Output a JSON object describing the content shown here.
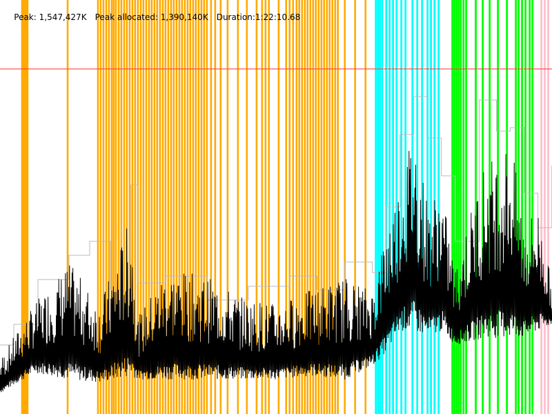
{
  "header": {
    "peak": "Peak: 1,547,427K",
    "peak_allocated": "Peak allocated: 1,390,140K",
    "duration": "Duration:1:22:10.68"
  },
  "chart_data": {
    "type": "line",
    "title": "",
    "xlabel": "",
    "ylabel": "",
    "x_unit": "seconds",
    "y_unit": "MB",
    "xlim": [
      0,
      4930.68
    ],
    "ylim": [
      0,
      1813
    ],
    "grid": false,
    "peak_line": {
      "value": 1511,
      "color": "#ff4040"
    },
    "colors": {
      "orange": "#ffaa00",
      "cyan": "#00ffff",
      "green": "#00ff00",
      "pink": "#ffc0cb",
      "heap": "#bbbbbb",
      "used": "#000000"
    },
    "events": {
      "orange": [
        197,
        209,
        222,
        234,
        246,
        604,
        875,
        899,
        924,
        949,
        973,
        998,
        1016,
        1035,
        1060,
        1084,
        1109,
        1133,
        1158,
        1183,
        1207,
        1232,
        1257,
        1281,
        1306,
        1331,
        1355,
        1380,
        1404,
        1429,
        1454,
        1478,
        1503,
        1528,
        1552,
        1577,
        1602,
        1626,
        1651,
        1676,
        1700,
        1725,
        1749,
        1774,
        1799,
        1823,
        1848,
        1885,
        1922,
        1971,
        2033,
        2125,
        2205,
        2292,
        2341,
        2372,
        2402,
        2489,
        2556,
        2587,
        2618,
        2649,
        2673,
        2698,
        2723,
        2747,
        2772,
        2797,
        2821,
        2846,
        2871,
        2895,
        2920,
        2944,
        2969,
        2994,
        3018,
        3080,
        3172,
        3265
      ],
      "cyan": [
        3357,
        3376,
        3394,
        3413,
        3450,
        3480,
        3511,
        3542,
        3585,
        3622,
        3684,
        3727,
        3770,
        3819,
        3850,
        3881,
        3918
      ],
      "green": [
        4041,
        4059,
        4078,
        4096,
        4115,
        4140,
        4164,
        4250,
        4312,
        4374,
        4448,
        4528,
        4608,
        4632,
        4663,
        4694,
        4731,
        4756
      ],
      "pink": [
        4836,
        4866,
        4897
      ]
    },
    "series": [
      {
        "kind": "heap-size",
        "x": [
          0,
          123,
          339,
          616,
          801,
          881,
          986,
          1170,
          1232,
          1478,
          1848,
          2218,
          2587,
          2834,
          3080,
          3326,
          3450,
          3573,
          3696,
          3819,
          3942,
          4066,
          4281,
          4435,
          4558,
          4682,
          4805,
          4929
        ],
        "y": [
          302,
          393,
          589,
          695,
          756,
          756,
          544,
          1003,
          574,
          604,
          499,
          559,
          604,
          544,
          665,
          620,
          907,
          1224,
          1390,
          1209,
          1043,
          756,
          1375,
          1239,
          1254,
          967,
          816,
          1088
        ]
      },
      {
        "kind": "used-range",
        "x": [
          0,
          308,
          616,
          893,
          1170,
          1232,
          1478,
          1848,
          2156,
          2464,
          2772,
          3080,
          3326,
          3450,
          3573,
          3696,
          3819,
          3942,
          4066,
          4312,
          4558,
          4682,
          4805,
          4929
        ],
        "low": [
          91,
          181,
          151,
          136,
          166,
          151,
          151,
          151,
          151,
          151,
          166,
          151,
          212,
          272,
          363,
          363,
          332,
          363,
          302,
          332,
          332,
          332,
          363,
          393
        ],
        "high": [
          242,
          484,
          665,
          484,
          876,
          423,
          635,
          604,
          514,
          484,
          544,
          604,
          544,
          816,
          1027,
          1269,
          937,
          997,
          635,
          1088,
          1209,
          846,
          907,
          574
        ]
      }
    ]
  }
}
